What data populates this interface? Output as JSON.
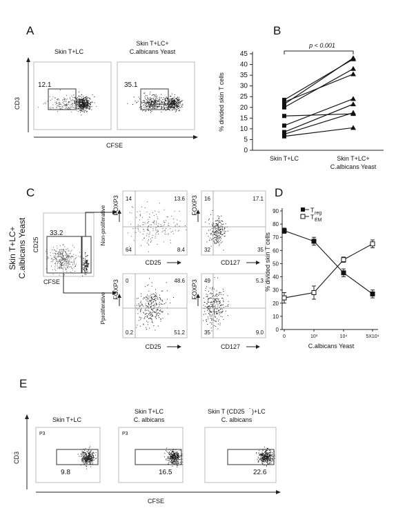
{
  "panel_labels": [
    "A",
    "B",
    "C",
    "D",
    "E"
  ],
  "panelA": {
    "titles": [
      "Skin T+LC",
      "Skin T+LC+",
      "C.albicans Yeast"
    ],
    "gate_values": [
      "12.1",
      "35.1"
    ],
    "ylabel": "CD3",
    "xlabel": "CFSE"
  },
  "panelC": {
    "side_label": [
      "Skin T+LC+",
      "C.albicans Yeast"
    ],
    "gate_plot": {
      "ylabel": "CD25",
      "xlabel": "CFSE",
      "gate_value": "33.2"
    },
    "row_labels": [
      "Non-proliferative",
      "Pproliferative"
    ],
    "quad_ylabel": "FOXP3",
    "quad_xlabels": [
      "CD25",
      "CD127",
      "CD25",
      "CD127"
    ],
    "quadrants": [
      [
        "14",
        "13.6",
        "64",
        "8.4"
      ],
      [
        "16",
        "17.1",
        "32",
        "35"
      ],
      [
        "0",
        "48.6",
        "0.2",
        "51.2"
      ],
      [
        "49",
        "5.3",
        "35",
        "9.0"
      ]
    ]
  },
  "panelE": {
    "titles": [
      "Skin T+LC",
      "Skin T+LC",
      "C. albicans",
      "Skin T (CD25",
      ")+LC",
      "C. albicans"
    ],
    "superscript": "-",
    "gate_tag": "P3",
    "gate_values": [
      "9.8",
      "16.5",
      "22.6"
    ],
    "ylabel": "CD3",
    "xlabel": "CFSE"
  },
  "chart_data": [
    {
      "type": "scatter",
      "panel": "B",
      "ylabel": "% divided skin T cells",
      "categories": [
        "Skin T+LC",
        "Skin T+LC+",
        "C.albicans Yeast"
      ],
      "yticks": [
        "0",
        "5",
        "10",
        "15",
        "20",
        "25",
        "30",
        "35",
        "40",
        "45"
      ],
      "ylim": [
        0,
        45
      ],
      "annotation": "p < 0.001",
      "series": [
        {
          "values": [
            6.5,
            10.5
          ]
        },
        {
          "values": [
            7.5,
            17.5
          ]
        },
        {
          "values": [
            8.5,
            21.5
          ]
        },
        {
          "values": [
            11.5,
            24.0
          ]
        },
        {
          "values": [
            16.0,
            17.0
          ]
        },
        {
          "values": [
            20.0,
            38.0
          ]
        },
        {
          "values": [
            21.5,
            43.0
          ]
        },
        {
          "values": [
            22.5,
            35.5
          ]
        },
        {
          "values": [
            23.5,
            42.5
          ]
        }
      ]
    },
    {
      "type": "line",
      "panel": "D",
      "ylabel": "% divided skin T cells",
      "xlabel": "C.albicans Yeast",
      "categories": [
        "0",
        "10³",
        "10⁴",
        "5X10⁴"
      ],
      "yticks": [
        "0",
        "10",
        "20",
        "30",
        "40",
        "50",
        "60",
        "70",
        "80",
        "90"
      ],
      "ylim": [
        0,
        90
      ],
      "legend": {
        "placement": "top-left",
        "labels": [
          "T",
          "reg",
          "T",
          "EM"
        ]
      },
      "series": [
        {
          "values": [
            75,
            67,
            43,
            27
          ],
          "errors": [
            2,
            3,
            3,
            3
          ]
        },
        {
          "values": [
            24,
            28,
            53,
            65
          ],
          "errors": [
            4,
            5,
            2,
            3
          ]
        }
      ]
    }
  ]
}
